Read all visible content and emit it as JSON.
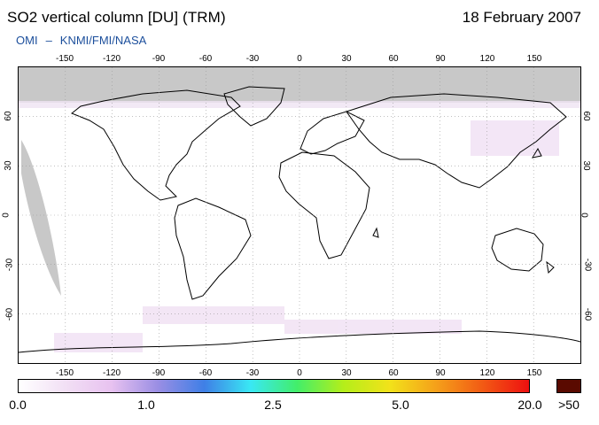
{
  "header": {
    "title": "SO2 vertical column [DU] (TRM)",
    "date": "18 February 2007",
    "source_instrument": "OMI",
    "source_dash": "–",
    "source_orgs": "KNMI/FMI/NASA"
  },
  "map": {
    "lon_ticks": [
      "-150",
      "-120",
      "-90",
      "-60",
      "-30",
      "0",
      "30",
      "60",
      "90",
      "120",
      "150"
    ],
    "lat_ticks": [
      "60",
      "30",
      "0",
      "-30",
      "-60"
    ],
    "lon_range": [
      -180,
      180
    ],
    "lat_range": [
      -90,
      90
    ],
    "no_data_color": "#c8c8c8",
    "graticule": "dotted"
  },
  "colorbar": {
    "labels": [
      "0.0",
      "1.0",
      "2.5",
      "5.0",
      "20.0"
    ],
    "overflow_label": ">50",
    "overflow_color": "#5a0a00",
    "stops": [
      "#ffffff",
      "#f2e0f5",
      "#e8c2f0",
      "#9a8ee4",
      "#3f7fe6",
      "#39e8f4",
      "#42ee6a",
      "#b4ee1a",
      "#f2e21a",
      "#f5a01a",
      "#f25a14",
      "#ee1010"
    ]
  }
}
